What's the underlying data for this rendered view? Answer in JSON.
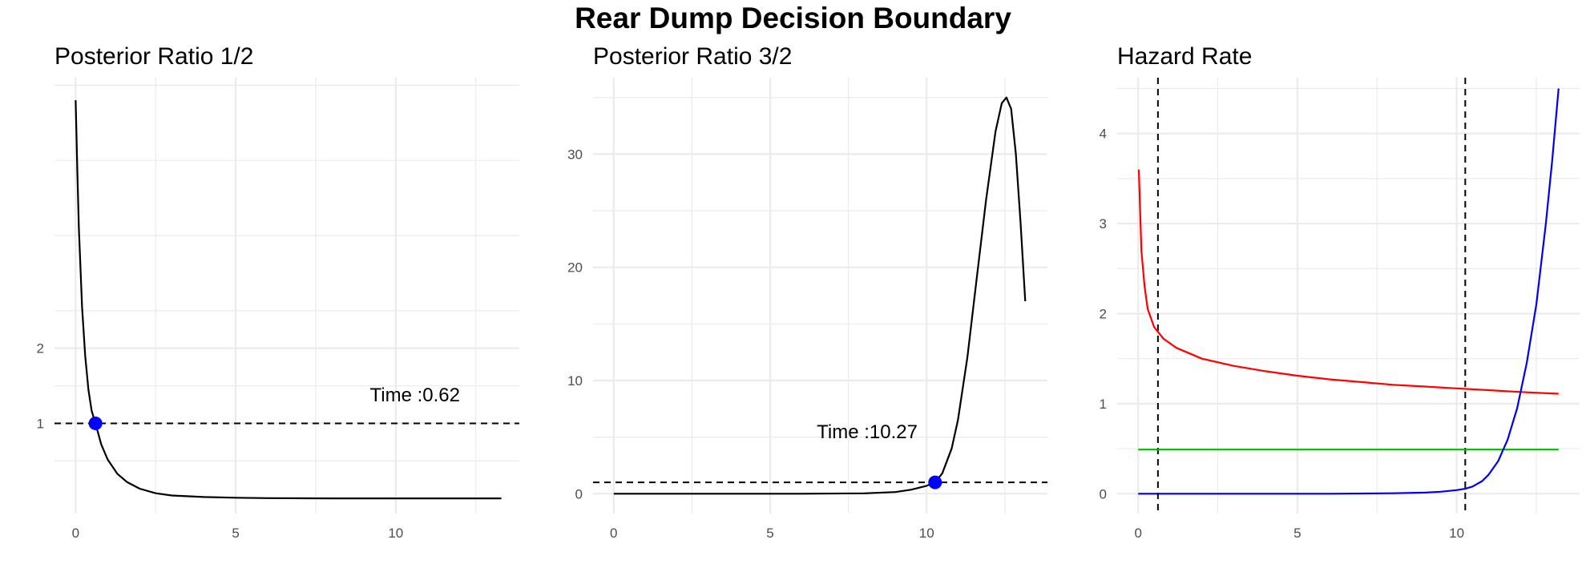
{
  "title": "Rear Dump Decision Boundary",
  "colors": {
    "curve": "#000000",
    "point": "#0000ff",
    "red": "#ff0000",
    "green": "#00bb00",
    "blue": "#0000ee",
    "grid": "#ebebeb"
  },
  "chart_data": [
    {
      "type": "line",
      "title": "Posterior Ratio 1/2",
      "xlabel": "",
      "ylabel": "",
      "xlim": [
        -0.66,
        13.86
      ],
      "ylim": [
        -0.2,
        5.6
      ],
      "x_ticks": [
        0,
        5,
        10
      ],
      "y_ticks": [
        1,
        2
      ],
      "grid": true,
      "series": [
        {
          "x": [
            0,
            0.05,
            0.1,
            0.2,
            0.3,
            0.4,
            0.5,
            0.62,
            0.8,
            1.0,
            1.3,
            1.6,
            2.0,
            2.5,
            3.0,
            4.0,
            5.0,
            6.0,
            8.0,
            10.0,
            12.0,
            13.3
          ],
          "y": [
            5.3,
            4.4,
            3.6,
            2.55,
            1.9,
            1.45,
            1.17,
            1.0,
            0.72,
            0.52,
            0.33,
            0.22,
            0.13,
            0.07,
            0.04,
            0.02,
            0.01,
            0.005,
            0.002,
            0.001,
            0.001,
            0.001
          ]
        }
      ],
      "hline": 1,
      "point": {
        "x": 0.62,
        "y": 1
      },
      "annotation": {
        "text": "Time :0.62",
        "x": 10.6,
        "y": 1.29
      }
    },
    {
      "type": "line",
      "title": "Posterior Ratio 3/2",
      "xlabel": "",
      "ylabel": "",
      "xlim": [
        -0.66,
        13.86
      ],
      "ylim": [
        -1.75,
        36.75
      ],
      "x_ticks": [
        0,
        5,
        10
      ],
      "y_ticks": [
        0,
        10,
        20,
        30
      ],
      "grid": true,
      "series": [
        {
          "x": [
            0,
            2,
            4,
            6,
            8,
            9,
            9.5,
            10.0,
            10.27,
            10.5,
            10.8,
            11.0,
            11.3,
            11.6,
            11.9,
            12.2,
            12.4,
            12.55,
            12.7,
            12.85,
            13.0,
            13.15
          ],
          "y": [
            0,
            0,
            0,
            0,
            0.03,
            0.15,
            0.35,
            0.7,
            1.0,
            1.8,
            4.0,
            6.5,
            12.0,
            19.0,
            26.0,
            32.0,
            34.5,
            35.0,
            34.0,
            30.0,
            24.0,
            17.0
          ]
        }
      ],
      "hline": 1,
      "point": {
        "x": 10.27,
        "y": 1
      },
      "annotation": {
        "text": "Time :10.27",
        "x": 8.1,
        "y": 4.9
      }
    },
    {
      "type": "line",
      "title": "Hazard Rate",
      "xlabel": "",
      "ylabel": "",
      "xlim": [
        -0.66,
        13.86
      ],
      "ylim": [
        -0.22,
        4.62
      ],
      "x_ticks": [
        0,
        5,
        10
      ],
      "y_ticks": [
        0,
        1,
        2,
        3,
        4
      ],
      "grid": true,
      "series": [
        {
          "color": "#ff0000",
          "x": [
            0.02,
            0.1,
            0.2,
            0.3,
            0.5,
            0.8,
            1.2,
            2.0,
            3.0,
            4.0,
            5.0,
            6.0,
            7.0,
            8.0,
            9.0,
            10.0,
            11.0,
            12.0,
            13.2
          ],
          "y": [
            3.6,
            2.7,
            2.3,
            2.05,
            1.85,
            1.72,
            1.62,
            1.5,
            1.42,
            1.36,
            1.31,
            1.27,
            1.24,
            1.21,
            1.19,
            1.17,
            1.15,
            1.13,
            1.11
          ]
        },
        {
          "color": "#00bb00",
          "x": [
            0,
            13.2
          ],
          "y": [
            0.49,
            0.49
          ]
        },
        {
          "color": "#0000ee",
          "x": [
            0,
            2,
            4,
            6,
            8,
            9,
            9.5,
            10.0,
            10.27,
            10.5,
            10.8,
            11.0,
            11.3,
            11.6,
            11.9,
            12.2,
            12.5,
            12.8,
            13.0,
            13.2
          ],
          "y": [
            0,
            0,
            0,
            0,
            0.005,
            0.012,
            0.022,
            0.04,
            0.055,
            0.08,
            0.14,
            0.21,
            0.36,
            0.6,
            0.95,
            1.45,
            2.1,
            3.0,
            3.7,
            4.5
          ]
        }
      ],
      "vlines": [
        0.62,
        10.27
      ]
    }
  ]
}
